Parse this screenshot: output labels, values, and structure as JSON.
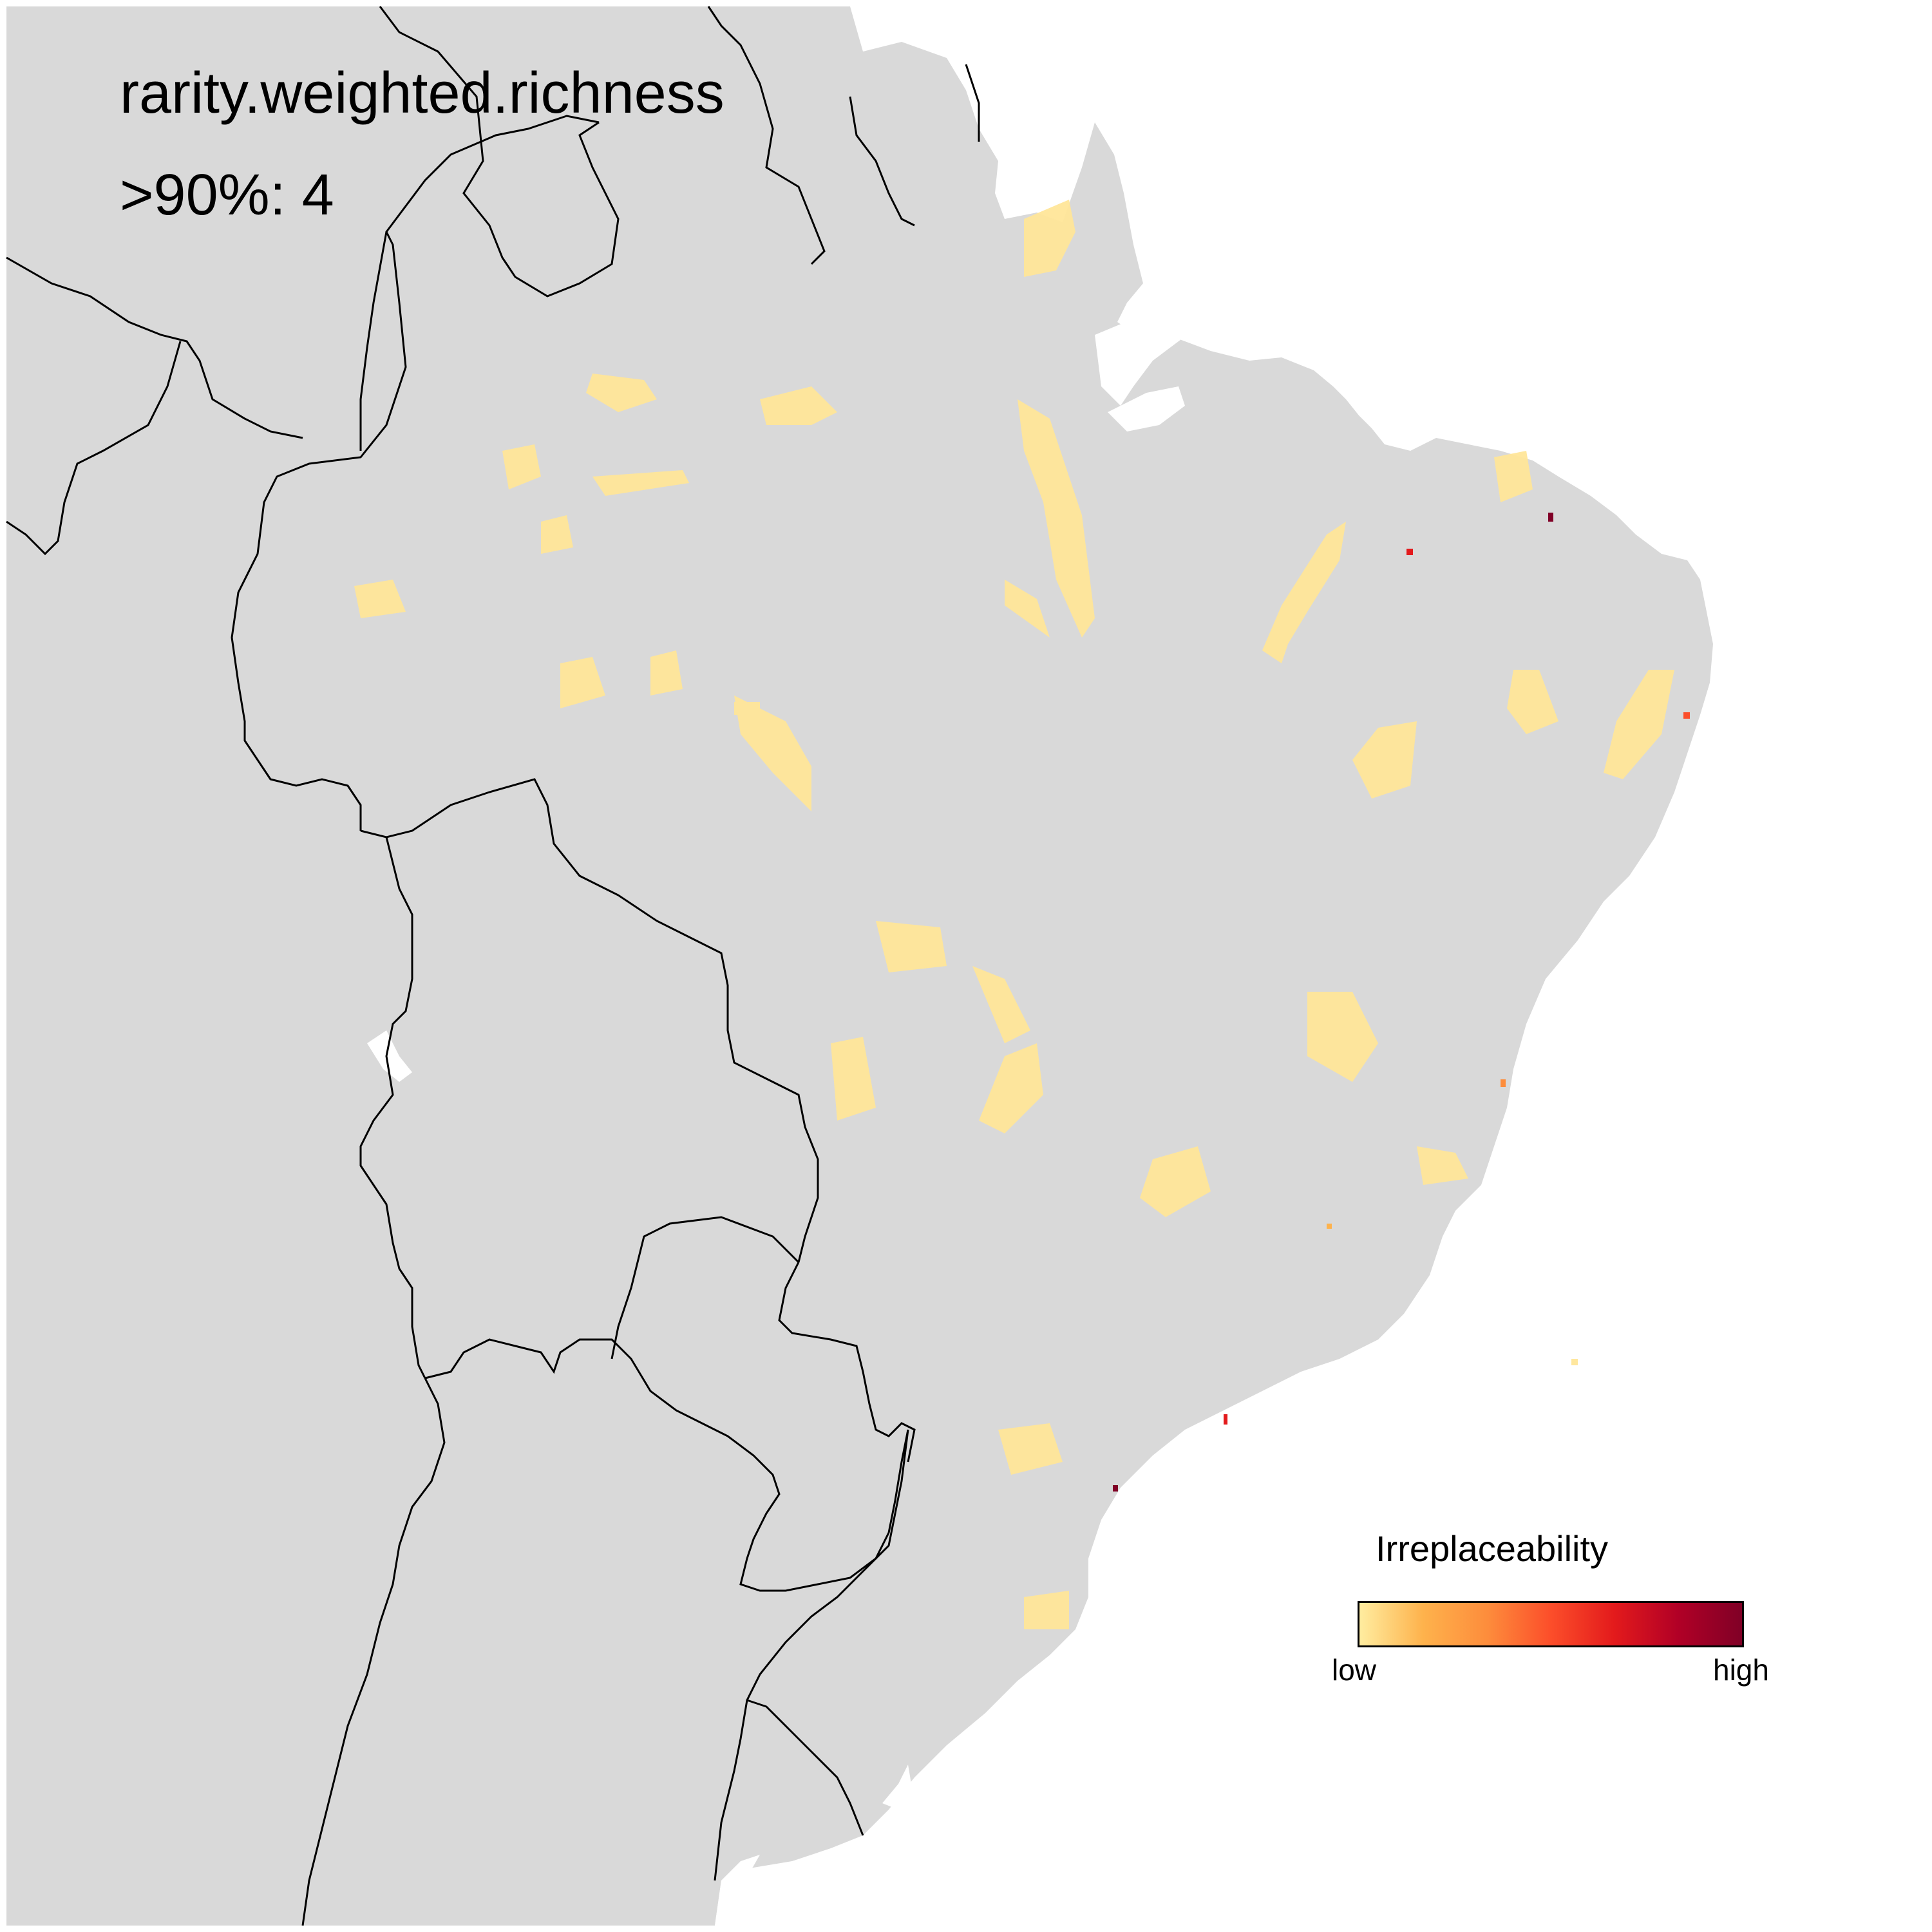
{
  "map": {
    "title": "rarity.weighted.richness",
    "subtitle": ">90%: 4",
    "colors": {
      "land": "#d9d9d9",
      "water": "#ffffff",
      "border": "#000000",
      "scale": [
        "#FFEDA0",
        "#FEB24C",
        "#FD8D3C",
        "#FC4E2A",
        "#E31A1C",
        "#B10026",
        "#800026"
      ]
    },
    "legend": {
      "title": "Irreplaceability",
      "low_label": "low",
      "high_label": "high"
    },
    "country_labels": []
  }
}
